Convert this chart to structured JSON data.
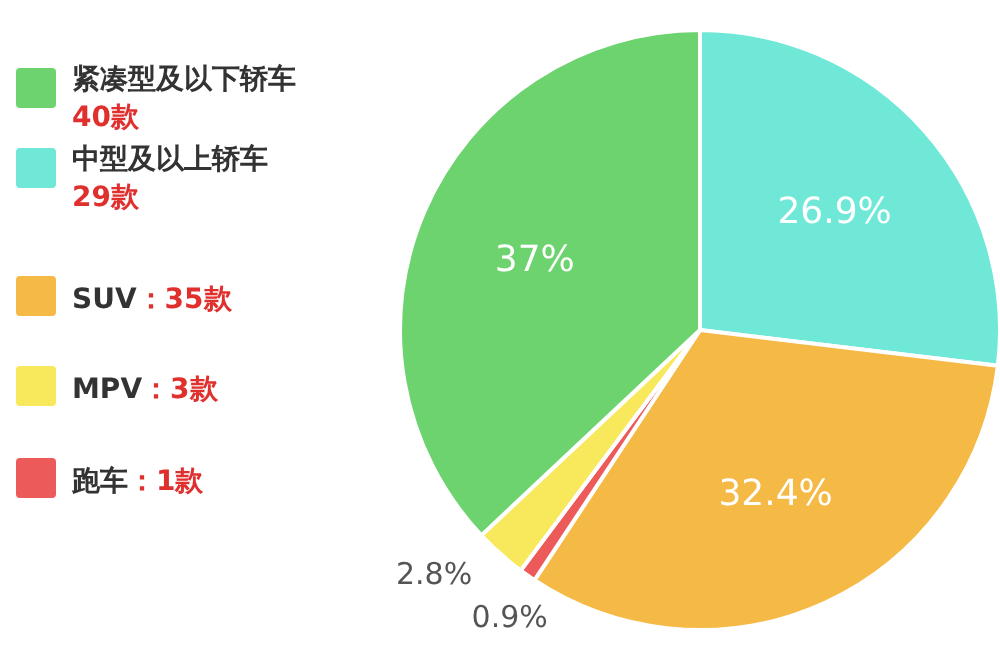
{
  "chart_data": {
    "type": "pie",
    "categories": [
      "紧凑型及以下轿车",
      "中型及以上轿车",
      "SUV",
      "MPV",
      "跑车"
    ],
    "values": [
      37,
      26.9,
      32.4,
      2.8,
      0.9
    ],
    "value_labels": [
      "37%",
      "26.9%",
      "32.4%",
      "2.8%",
      "0.9%"
    ],
    "colors": [
      "#6dd36f",
      "#6fe8d8",
      "#f5b945",
      "#f8e85c",
      "#ec5b5a"
    ],
    "annotations": [
      "40款",
      "29款",
      "：35款",
      "：3款",
      "：1款"
    ],
    "legend": "left"
  }
}
